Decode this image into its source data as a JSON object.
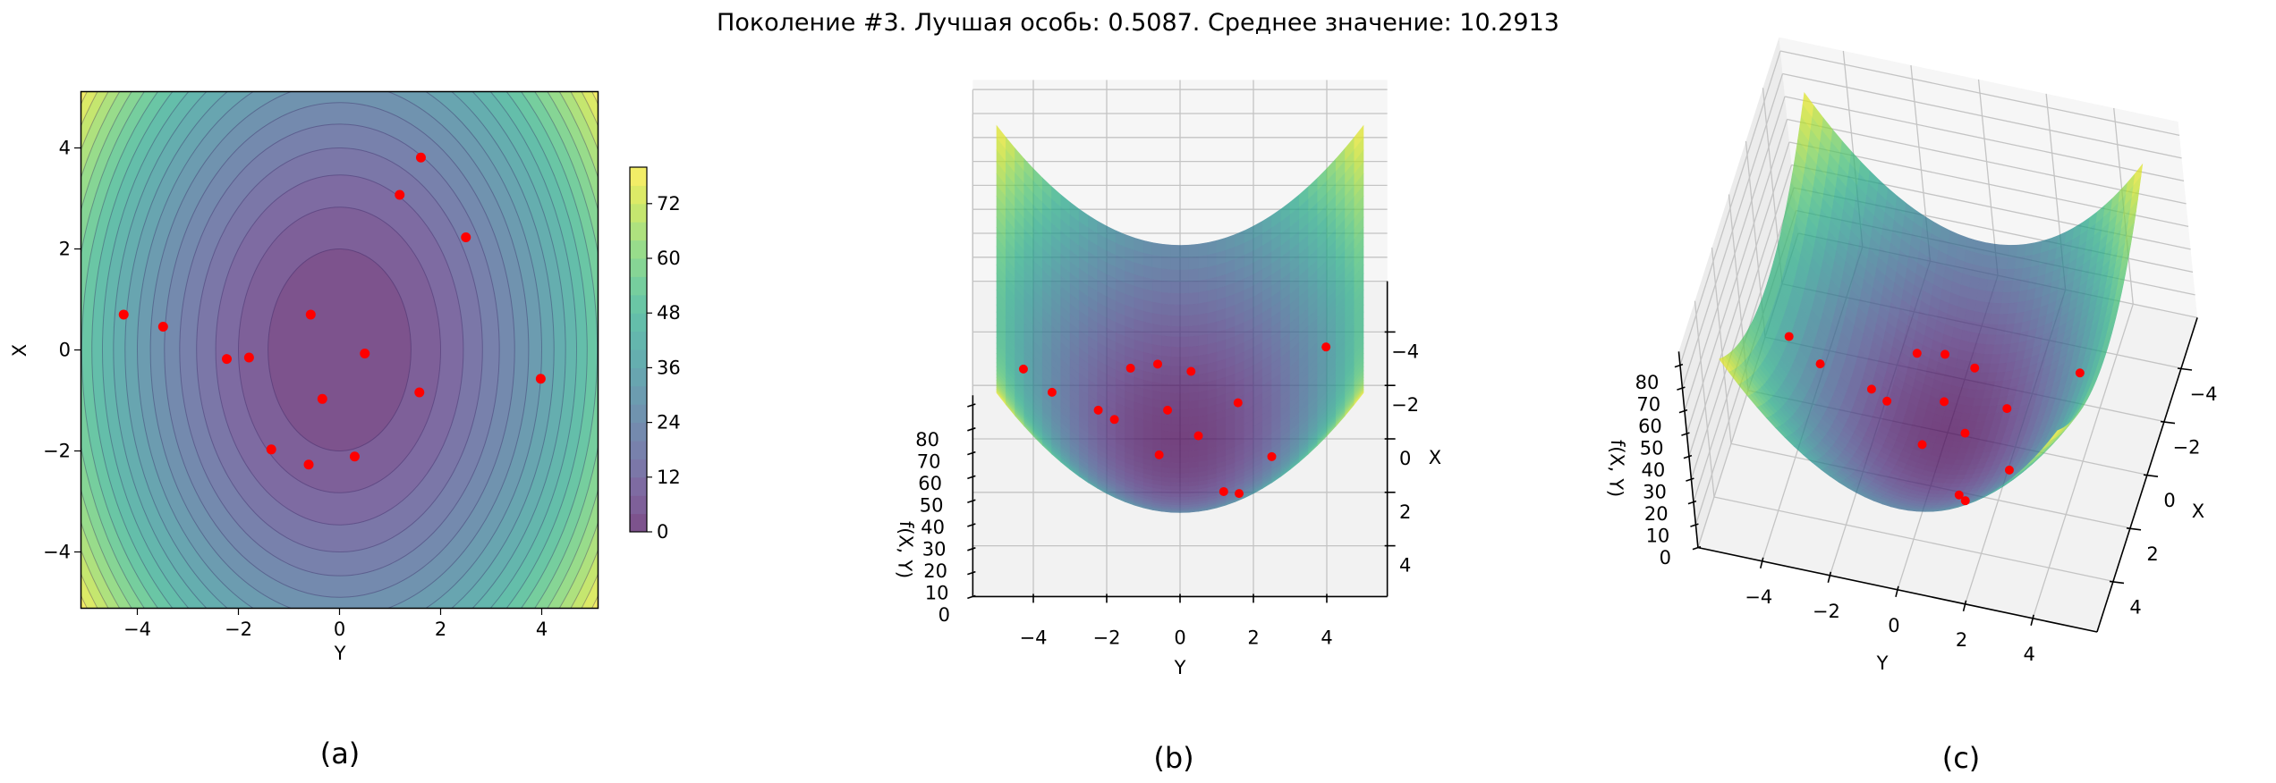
{
  "title": "Поколение #3. Лучшая особь: 0.5087. Среднее значение: 10.2913",
  "subplot_labels": [
    "(a)",
    "(b)",
    "(c)"
  ],
  "chart_data": [
    {
      "type": "contour",
      "xlabel": "Y",
      "ylabel": "X",
      "xlim": [
        -5.12,
        5.12
      ],
      "ylim": [
        -5.12,
        5.12
      ],
      "xticks": [
        -4,
        -2,
        0,
        2,
        4
      ],
      "yticks": [
        -4,
        -2,
        0,
        2,
        4
      ],
      "colormap": "viridis",
      "levels": [
        0,
        4,
        8,
        12,
        16,
        20,
        24,
        28,
        32,
        36,
        40,
        44,
        48,
        52,
        56,
        60,
        64,
        68,
        72,
        76,
        80
      ],
      "colorbar": {
        "ticks": [
          0,
          12,
          24,
          36,
          48,
          60,
          72
        ],
        "range": [
          0,
          80
        ]
      },
      "points": {
        "color": "#ff0000",
        "Y": [
          1.61,
          1.19,
          2.5,
          -4.27,
          -3.49,
          -0.57,
          -2.23,
          -1.79,
          0.5,
          -0.34,
          1.58,
          3.98,
          -1.35,
          -0.61,
          0.3
        ],
        "X": [
          3.81,
          3.07,
          2.23,
          0.7,
          0.46,
          0.7,
          -0.18,
          -0.15,
          -0.07,
          -0.97,
          -0.84,
          -0.57,
          -1.97,
          -2.27,
          -2.11
        ]
      }
    },
    {
      "type": "surface3d",
      "xlabel": "Y",
      "ylabel": "X",
      "zlabel": "f(X, Y)",
      "colormap": "viridis",
      "xticks": [
        -4,
        -2,
        0,
        2,
        4
      ],
      "yticks": [
        -4,
        -2,
        0,
        2,
        4
      ],
      "zticks": [
        0,
        10,
        20,
        30,
        40,
        50,
        60,
        70,
        80
      ],
      "points": {
        "color": "#ff0000",
        "Y": [
          1.61,
          1.19,
          2.5,
          -4.27,
          -3.49,
          -0.57,
          -2.23,
          -1.79,
          0.5,
          -0.34,
          1.58,
          3.98,
          -1.35,
          -0.61,
          0.3
        ],
        "X": [
          3.81,
          3.07,
          2.23,
          0.7,
          0.46,
          0.7,
          -0.18,
          -0.15,
          -0.07,
          -0.97,
          -0.84,
          -0.57,
          -1.97,
          -2.27,
          -2.11
        ]
      }
    },
    {
      "type": "surface3d",
      "xlabel": "Y",
      "ylabel": "X",
      "zlabel": "f(X, Y)",
      "colormap": "viridis",
      "xticks": [
        -4,
        -2,
        0,
        2,
        4
      ],
      "yticks": [
        -4,
        -2,
        0,
        2,
        4
      ],
      "zticks": [
        0,
        10,
        20,
        30,
        40,
        50,
        60,
        70,
        80
      ],
      "points": {
        "color": "#ff0000",
        "Y": [
          1.61,
          1.19,
          2.5,
          -4.27,
          -3.49,
          -0.57,
          -2.23,
          -1.79,
          0.5,
          -0.34,
          1.58,
          3.98,
          -1.35,
          -0.61,
          0.3
        ],
        "X": [
          3.81,
          3.07,
          2.23,
          0.7,
          0.46,
          0.7,
          -0.18,
          -0.15,
          -0.07,
          -0.97,
          -0.84,
          -0.57,
          -1.97,
          -2.27,
          -2.11
        ]
      }
    }
  ]
}
